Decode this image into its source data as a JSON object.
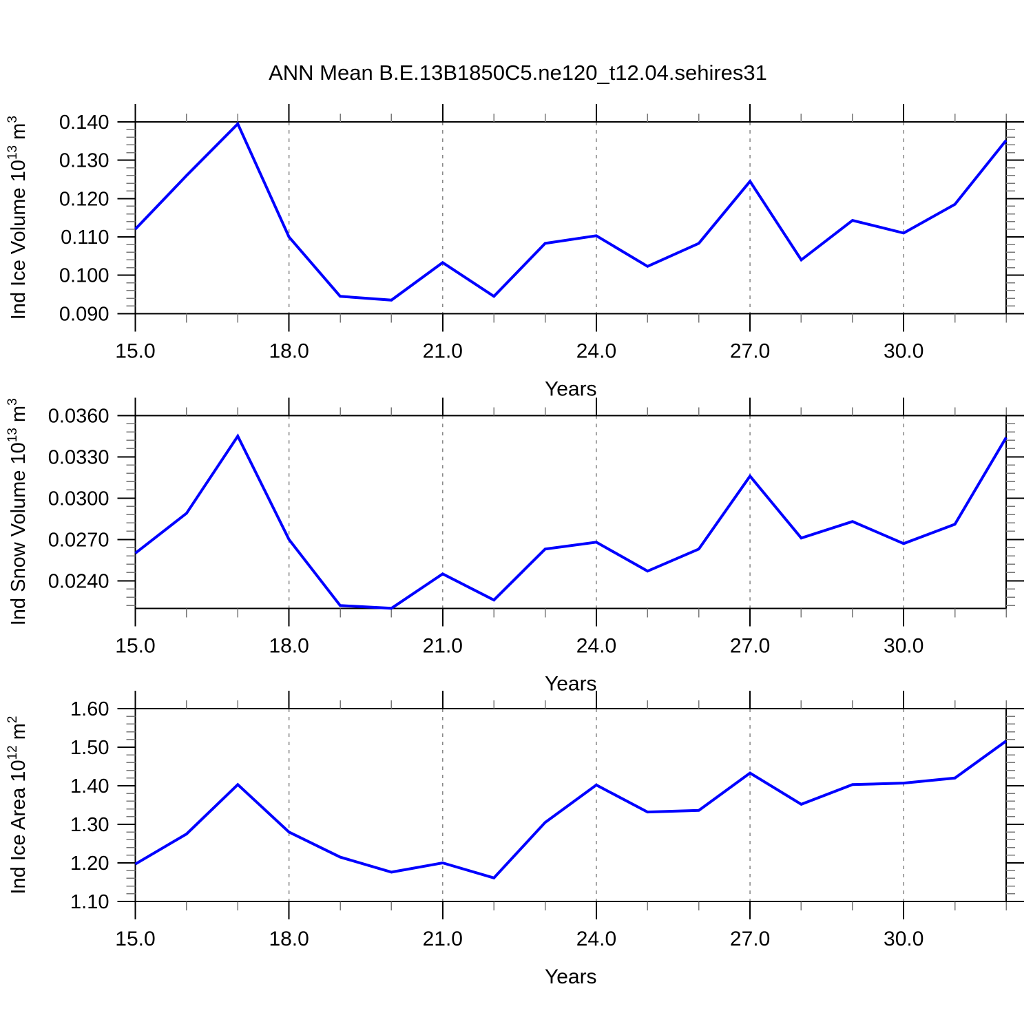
{
  "title": "ANN Mean B.E.13B1850C5.ne120_t12.04.sehires31",
  "colors": {
    "line": "#0000ff",
    "axis": "#000000",
    "grid": "#858585",
    "minor_tick": "#777777",
    "background": "#ffffff"
  },
  "chart_data": [
    {
      "type": "line",
      "name": "ind-ice-volume",
      "ylabel": "Ind Ice Volume 10^{13} m^{3}",
      "xlabel": "Years",
      "x": [
        15,
        16,
        17,
        18,
        19,
        20,
        21,
        22,
        23,
        24,
        25,
        26,
        27,
        28,
        29,
        30,
        31,
        32
      ],
      "values": [
        0.112,
        0.126,
        0.1395,
        0.11,
        0.0945,
        0.0935,
        0.1033,
        0.0945,
        0.1083,
        0.1103,
        0.1023,
        0.1083,
        0.1245,
        0.104,
        0.1143,
        0.111,
        0.1185,
        0.1352
      ],
      "xlim": [
        15,
        32
      ],
      "ylim": [
        0.09,
        0.14
      ],
      "xtick_values": [
        15,
        18,
        21,
        24,
        27,
        30
      ],
      "xtick_labels": [
        "15.0",
        "18.0",
        "21.0",
        "24.0",
        "27.0",
        "30.0"
      ],
      "xminor_step": 1,
      "grid_x": [
        18,
        21,
        24,
        27,
        30
      ],
      "ytick_values": [
        0.09,
        0.1,
        0.11,
        0.12,
        0.13,
        0.14
      ],
      "ytick_labels": [
        "0.090",
        "0.100",
        "0.110",
        "0.120",
        "0.130",
        "0.140"
      ],
      "yminor_step": 0.002,
      "yminor_base": 0.09
    },
    {
      "type": "line",
      "name": "ind-snow-volume",
      "ylabel": "Ind Snow Volume 10^{13} m^{3}",
      "xlabel": "Years",
      "x": [
        15,
        16,
        17,
        18,
        19,
        20,
        21,
        22,
        23,
        24,
        25,
        26,
        27,
        28,
        29,
        30,
        31,
        32
      ],
      "values": [
        0.026,
        0.0289,
        0.0345,
        0.027,
        0.0222,
        0.022,
        0.0245,
        0.0226,
        0.0263,
        0.0268,
        0.0247,
        0.0263,
        0.0316,
        0.0271,
        0.0283,
        0.0267,
        0.0281,
        0.0344
      ],
      "xlim": [
        15,
        32
      ],
      "ylim": [
        0.022,
        0.036
      ],
      "xtick_values": [
        15,
        18,
        21,
        24,
        27,
        30
      ],
      "xtick_labels": [
        "15.0",
        "18.0",
        "21.0",
        "24.0",
        "27.0",
        "30.0"
      ],
      "xminor_step": 1,
      "grid_x": [
        18,
        21,
        24,
        27,
        30
      ],
      "ytick_values": [
        0.024,
        0.027,
        0.03,
        0.033,
        0.036
      ],
      "ytick_labels": [
        "0.0240",
        "0.0270",
        "0.0300",
        "0.0330",
        "0.0360"
      ],
      "yminor_step": 0.0006,
      "yminor_base": 0.024
    },
    {
      "type": "line",
      "name": "ind-ice-area",
      "ylabel": "Ind Ice Area 10^{12} m^{2}",
      "xlabel": "Years",
      "x": [
        15,
        16,
        17,
        18,
        19,
        20,
        21,
        22,
        23,
        24,
        25,
        26,
        27,
        28,
        29,
        30,
        31,
        32
      ],
      "values": [
        1.197,
        1.275,
        1.403,
        1.28,
        1.215,
        1.176,
        1.2,
        1.161,
        1.305,
        1.402,
        1.332,
        1.336,
        1.433,
        1.352,
        1.403,
        1.407,
        1.42,
        1.516
      ],
      "xlim": [
        15,
        32
      ],
      "ylim": [
        1.1,
        1.6
      ],
      "xtick_values": [
        15,
        18,
        21,
        24,
        27,
        30
      ],
      "xtick_labels": [
        "15.0",
        "18.0",
        "21.0",
        "24.0",
        "27.0",
        "30.0"
      ],
      "xminor_step": 1,
      "grid_x": [
        18,
        21,
        24,
        27,
        30
      ],
      "ytick_values": [
        1.1,
        1.2,
        1.3,
        1.4,
        1.5,
        1.6
      ],
      "ytick_labels": [
        "1.10",
        "1.20",
        "1.30",
        "1.40",
        "1.50",
        "1.60"
      ],
      "yminor_step": 0.02,
      "yminor_base": 1.1
    }
  ]
}
